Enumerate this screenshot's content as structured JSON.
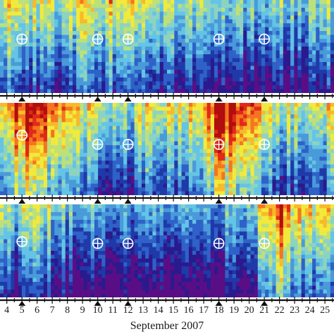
{
  "chart_data": {
    "type": "heatmap",
    "title": "",
    "xlabel": "September 2007",
    "ylabel": "",
    "x_ticks": [
      "4",
      "5",
      "6",
      "7",
      "8",
      "9",
      "10",
      "11",
      "12",
      "13",
      "14",
      "15",
      "16",
      "17",
      "18",
      "19",
      "20",
      "21",
      "22",
      "23",
      "24",
      "25"
    ],
    "xlim": [
      3.55,
      25.6
    ],
    "minor_ticks_per_day": 2,
    "event_markers": [
      5,
      10,
      12,
      18,
      21
    ],
    "panels": [
      {
        "name": "",
        "marker_day": [
          5,
          10,
          12,
          18,
          21
        ],
        "marker_level": [
          0.42,
          0.42,
          0.42,
          0.42,
          0.42
        ],
        "intensity_profile_days": [
          3.6,
          4.5,
          5.0,
          6.0,
          7.0,
          8.0,
          9.0,
          10.0,
          11.0,
          12.0,
          13.0,
          14.0,
          15.0,
          16.0,
          17.0,
          18.0,
          19.0,
          20.0,
          21.0,
          22.0,
          23.0,
          24.0,
          25.6
        ],
        "intensity_profile_values": [
          0.55,
          0.5,
          0.38,
          0.42,
          0.35,
          0.3,
          0.55,
          0.4,
          0.48,
          0.4,
          0.42,
          0.38,
          0.35,
          0.3,
          0.25,
          0.3,
          0.28,
          0.25,
          0.3,
          0.3,
          0.28,
          0.3,
          0.32
        ]
      },
      {
        "name": "",
        "marker_day": [
          5,
          10,
          12,
          18,
          21
        ],
        "marker_level": [
          0.35,
          0.45,
          0.45,
          0.45,
          0.45
        ],
        "intensity_profile_days": [
          3.6,
          4.5,
          5.0,
          6.0,
          7.0,
          8.0,
          9.0,
          10.0,
          11.0,
          12.0,
          13.0,
          14.0,
          15.0,
          16.0,
          17.0,
          18.0,
          19.0,
          20.0,
          21.0,
          22.0,
          23.0,
          24.0,
          25.6
        ],
        "intensity_profile_values": [
          0.6,
          0.72,
          0.82,
          0.78,
          0.62,
          0.55,
          0.5,
          0.35,
          0.4,
          0.35,
          0.45,
          0.55,
          0.45,
          0.5,
          0.62,
          0.82,
          0.78,
          0.7,
          0.58,
          0.42,
          0.4,
          0.38,
          0.5
        ]
      },
      {
        "name": "",
        "marker_day": [
          5,
          10,
          12,
          18,
          21
        ],
        "marker_level": [
          0.4,
          0.42,
          0.42,
          0.42,
          0.42
        ],
        "intensity_profile_days": [
          3.6,
          4.5,
          5.0,
          6.0,
          7.0,
          8.0,
          9.0,
          10.0,
          11.0,
          12.0,
          13.0,
          14.0,
          15.0,
          16.0,
          17.0,
          18.0,
          19.0,
          20.0,
          21.0,
          22.0,
          23.0,
          24.0,
          25.6
        ],
        "intensity_profile_values": [
          0.3,
          0.28,
          0.32,
          0.4,
          0.35,
          0.25,
          0.22,
          0.2,
          0.2,
          0.18,
          0.18,
          0.2,
          0.18,
          0.2,
          0.22,
          0.2,
          0.22,
          0.3,
          0.45,
          0.72,
          0.55,
          0.45,
          0.4
        ]
      }
    ],
    "colormap": [
      "#5a0e86",
      "#2a1a8e",
      "#1f3aa8",
      "#2f62c8",
      "#4a9ad9",
      "#64c4e6",
      "#8cd3c2",
      "#bde07a",
      "#f1ea3c",
      "#f8b92a",
      "#f47520",
      "#e02a18",
      "#b10e0e"
    ]
  }
}
